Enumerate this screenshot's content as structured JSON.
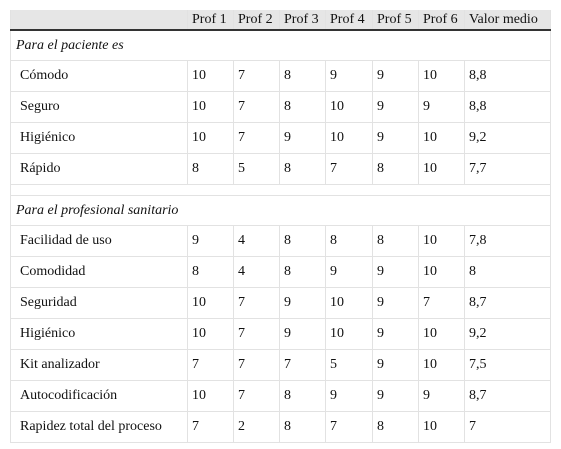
{
  "table": {
    "header": [
      "Prof 1",
      "Prof 2",
      "Prof 3",
      "Prof 4",
      "Prof 5",
      "Prof 6",
      "Valor medio"
    ],
    "sections": [
      {
        "title": "Para el paciente es",
        "rows": [
          [
            "Cómodo",
            "10",
            "7",
            "8",
            "9",
            "9",
            "10",
            "8,8"
          ],
          [
            "Seguro",
            "10",
            "7",
            "8",
            "10",
            "9",
            "9",
            "8,8"
          ],
          [
            "Higiénico",
            "10",
            "7",
            "9",
            "10",
            "9",
            "10",
            "9,2"
          ],
          [
            "Rápido",
            "8",
            "5",
            "8",
            "7",
            "8",
            "10",
            "7,7"
          ]
        ]
      },
      {
        "title": "Para el profesional sanitario",
        "rows": [
          [
            "Facilidad de uso",
            "9",
            "4",
            "8",
            "8",
            "8",
            "10",
            "7,8"
          ],
          [
            "Comodidad",
            "8",
            "4",
            "8",
            "9",
            "9",
            "10",
            "8"
          ],
          [
            "Seguridad",
            "10",
            "7",
            "9",
            "10",
            "9",
            "7",
            "8,7"
          ],
          [
            "Higiénico",
            "10",
            "7",
            "9",
            "10",
            "9",
            "10",
            "9,2"
          ],
          [
            "Kit analizador",
            "7",
            "7",
            "7",
            "5",
            "9",
            "10",
            "7,5"
          ],
          [
            "Autocodificación",
            "10",
            "7",
            "8",
            "9",
            "9",
            "9",
            "8,7"
          ],
          [
            "Rapidez total del proceso",
            "7",
            "2",
            "8",
            "7",
            "8",
            "10",
            "7"
          ]
        ]
      }
    ]
  }
}
